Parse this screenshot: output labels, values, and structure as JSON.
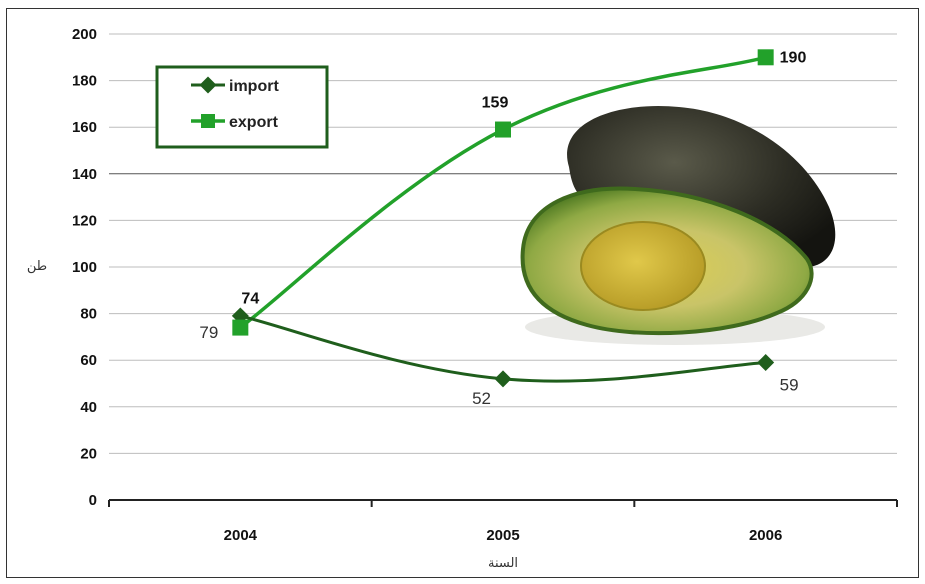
{
  "chart_data": {
    "type": "line",
    "categories": [
      "2004",
      "2005",
      "2006"
    ],
    "series": [
      {
        "name": "import",
        "values": [
          79,
          52,
          59
        ],
        "color": "#1f5e1c",
        "marker": "diamond"
      },
      {
        "name": "export",
        "values": [
          74,
          159,
          190
        ],
        "color": "#22a12a",
        "marker": "square"
      }
    ],
    "data_labels": {
      "import": [
        "79",
        "52",
        "59"
      ],
      "export": [
        "74",
        "159",
        "190"
      ]
    },
    "xlabel": "السنة",
    "ylabel": "طن",
    "ylim": [
      0,
      200
    ],
    "yticks": [
      "0",
      "20",
      "40",
      "60",
      "80",
      "100",
      "120",
      "140",
      "160",
      "180",
      "200"
    ],
    "grid": true,
    "legend_position": "top-left",
    "decoration": "avocado-photo"
  }
}
